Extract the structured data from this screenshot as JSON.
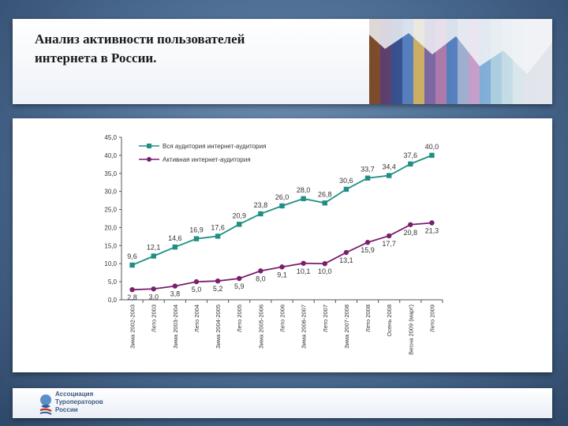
{
  "header": {
    "title_line1": "Анализ активности пользователей",
    "title_line2": "интернета в России."
  },
  "footer": {
    "logo_line1": "Ассоциация",
    "logo_line2": "Туроператоров",
    "logo_line3": "России"
  },
  "colors": {
    "series1": "#1f8f84",
    "series2": "#7a1f6e"
  },
  "chart_data": {
    "type": "line",
    "title": "",
    "xlabel": "",
    "ylabel": "",
    "ylim": [
      0,
      45
    ],
    "yticks": [
      "0,0",
      "5,0",
      "10,0",
      "15,0",
      "20,0",
      "25,0",
      "30,0",
      "35,0",
      "40,0",
      "45,0"
    ],
    "grid": false,
    "legend_position": "top-left",
    "categories": [
      "Зима 2002-2003",
      "Лето 2003",
      "Зима 2003-2004",
      "Лето 2004",
      "Зима 2004-2005",
      "Лето 2005",
      "Зима 2005-2006",
      "Лето 2006",
      "Зима 2006-2007",
      "Лето 2007",
      "Зима 2007-2008",
      "Лето 2008",
      "Осень 2008",
      "Весна 2009 (март)",
      "Лето 2009"
    ],
    "series": [
      {
        "name": "Вся аудитория интернет-аудитория",
        "values": [
          9.6,
          12.1,
          14.6,
          16.9,
          17.6,
          20.9,
          23.8,
          26.0,
          28.0,
          26.8,
          30.6,
          33.7,
          34.4,
          37.6,
          40.0
        ],
        "labels": [
          "9,6",
          "12,1",
          "14,6",
          "16,9",
          "17,6",
          "20,9",
          "23,8",
          "26,0",
          "28,0",
          "26,8",
          "30,6",
          "33,7",
          "34,4",
          "37,6",
          "40,0"
        ]
      },
      {
        "name": "Активная интернет-аудитория",
        "values": [
          2.8,
          3.0,
          3.8,
          5.0,
          5.2,
          5.9,
          8.0,
          9.1,
          10.1,
          10.0,
          13.1,
          15.9,
          17.7,
          20.8,
          21.3
        ],
        "labels": [
          "2,8",
          "3,0",
          "3,8",
          "5,0",
          "5,2",
          "5,9",
          "8,0",
          "9,1",
          "10,1",
          "10,0",
          "13,1",
          "15,9",
          "17,7",
          "20,8",
          "21,3"
        ]
      }
    ]
  }
}
